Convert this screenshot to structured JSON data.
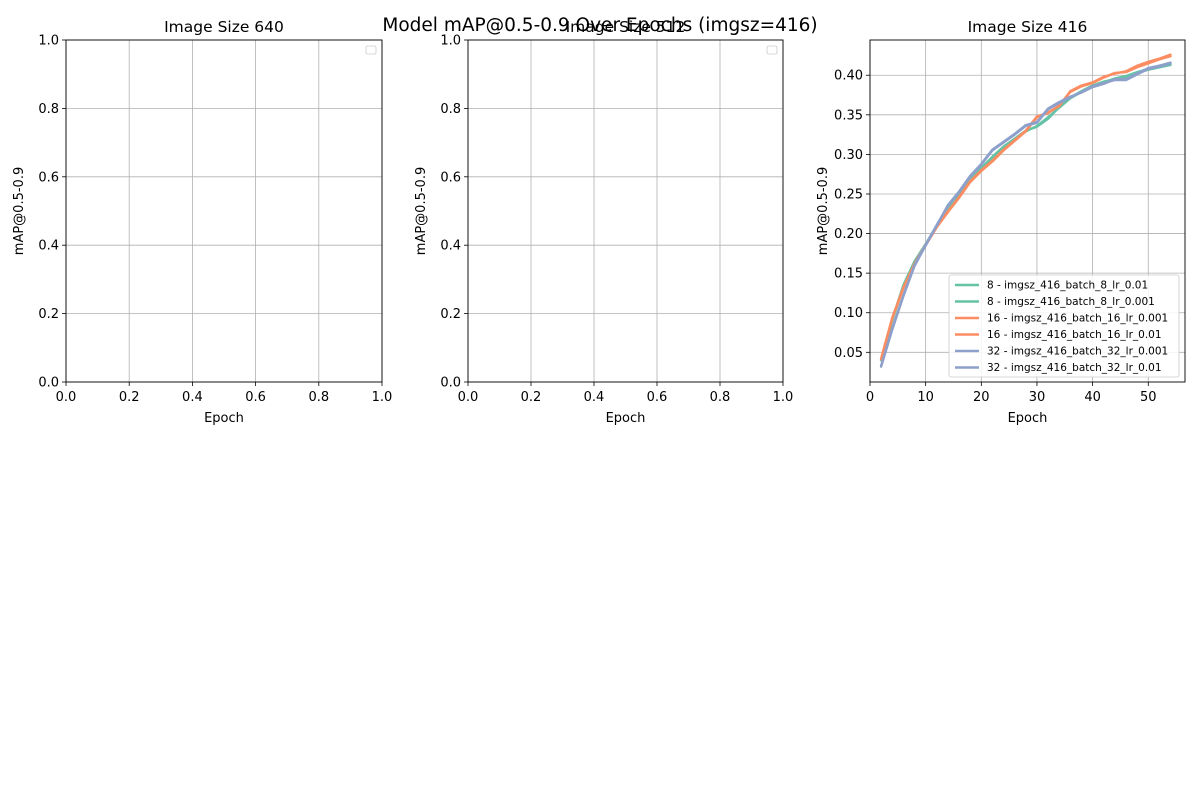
{
  "figure": {
    "suptitle": "Model mAP@0.5-0.9 Over Epochs (imgsz=416)"
  },
  "chart_data": [
    {
      "type": "line",
      "title": "Image Size 640",
      "xlabel": "Epoch",
      "ylabel": "mAP@0.5-0.9",
      "xlim": [
        0,
        1
      ],
      "ylim": [
        0,
        1
      ],
      "xticks": [
        "0.0",
        "0.2",
        "0.4",
        "0.6",
        "0.8",
        "1.0"
      ],
      "yticks": [
        "0.0",
        "0.2",
        "0.4",
        "0.6",
        "0.8",
        "1.0"
      ],
      "grid": true,
      "legend": "upper right (empty)",
      "series": []
    },
    {
      "type": "line",
      "title": "Image Size 512",
      "xlabel": "Epoch",
      "ylabel": "mAP@0.5-0.9",
      "xlim": [
        0,
        1
      ],
      "ylim": [
        0,
        1
      ],
      "xticks": [
        "0.0",
        "0.2",
        "0.4",
        "0.6",
        "0.8",
        "1.0"
      ],
      "yticks": [
        "0.0",
        "0.2",
        "0.4",
        "0.6",
        "0.8",
        "1.0"
      ],
      "grid": true,
      "legend": "upper right (empty)",
      "series": []
    },
    {
      "type": "line",
      "title": "Image Size 416",
      "xlabel": "Epoch",
      "ylabel": "mAP@0.5-0.9",
      "xlim": [
        0,
        56.6
      ],
      "ylim": [
        0.0125,
        0.4445
      ],
      "xticks": [
        "0",
        "10",
        "20",
        "30",
        "40",
        "50"
      ],
      "yticks": [
        "0.05",
        "0.10",
        "0.15",
        "0.20",
        "0.25",
        "0.30",
        "0.35",
        "0.40"
      ],
      "grid": true,
      "legend": "lower right",
      "x": [
        2,
        4,
        6,
        8,
        10,
        12,
        14,
        16,
        18,
        20,
        22,
        24,
        26,
        28,
        30,
        32,
        34,
        36,
        38,
        40,
        42,
        44,
        46,
        48,
        50,
        52,
        54
      ],
      "series": [
        {
          "name": "8 - imgsz_416_batch_8_lr_0.01",
          "color": "#66c2a5",
          "values": [
            0.04,
            0.092,
            0.135,
            0.165,
            0.187,
            0.21,
            0.23,
            0.248,
            0.268,
            0.283,
            0.297,
            0.31,
            0.32,
            0.33,
            0.335,
            0.345,
            0.36,
            0.372,
            0.38,
            0.387,
            0.392,
            0.395,
            0.398,
            0.403,
            0.407,
            0.41,
            0.413
          ]
        },
        {
          "name": "8 - imgsz_416_batch_8_lr_0.001",
          "color": "#66c2a5",
          "values": [
            0.04,
            0.09,
            0.133,
            0.164,
            0.186,
            0.209,
            0.229,
            0.247,
            0.267,
            0.282,
            0.296,
            0.309,
            0.319,
            0.329,
            0.336,
            0.347,
            0.359,
            0.371,
            0.379,
            0.386,
            0.391,
            0.396,
            0.399,
            0.404,
            0.408,
            0.411,
            0.414
          ]
        },
        {
          "name": "16 - imgsz_416_batch_16_lr_0.001",
          "color": "#fc8d62",
          "values": [
            0.042,
            0.094,
            0.132,
            0.162,
            0.186,
            0.209,
            0.228,
            0.246,
            0.266,
            0.28,
            0.292,
            0.306,
            0.318,
            0.33,
            0.348,
            0.352,
            0.362,
            0.379,
            0.386,
            0.39,
            0.397,
            0.403,
            0.404,
            0.41,
            0.415,
            0.42,
            0.424
          ]
        },
        {
          "name": "16 - imgsz_416_batch_16_lr_0.01",
          "color": "#fc8d62",
          "values": [
            0.041,
            0.093,
            0.131,
            0.161,
            0.185,
            0.208,
            0.227,
            0.245,
            0.265,
            0.279,
            0.291,
            0.305,
            0.317,
            0.329,
            0.347,
            0.353,
            0.361,
            0.38,
            0.387,
            0.391,
            0.398,
            0.402,
            0.405,
            0.412,
            0.417,
            0.421,
            0.426
          ]
        },
        {
          "name": "32 - imgsz_416_batch_32_lr_0.001",
          "color": "#8da0cb",
          "values": [
            0.033,
            0.08,
            0.122,
            0.16,
            0.186,
            0.211,
            0.235,
            0.252,
            0.272,
            0.287,
            0.305,
            0.315,
            0.325,
            0.336,
            0.34,
            0.357,
            0.365,
            0.372,
            0.379,
            0.386,
            0.39,
            0.394,
            0.394,
            0.401,
            0.408,
            0.411,
            0.415
          ]
        },
        {
          "name": "32 - imgsz_416_batch_32_lr_0.01",
          "color": "#8da0cb",
          "values": [
            0.032,
            0.079,
            0.121,
            0.159,
            0.185,
            0.21,
            0.236,
            0.253,
            0.273,
            0.288,
            0.306,
            0.316,
            0.326,
            0.337,
            0.341,
            0.358,
            0.366,
            0.373,
            0.378,
            0.385,
            0.389,
            0.395,
            0.395,
            0.402,
            0.409,
            0.412,
            0.416
          ]
        }
      ]
    }
  ]
}
